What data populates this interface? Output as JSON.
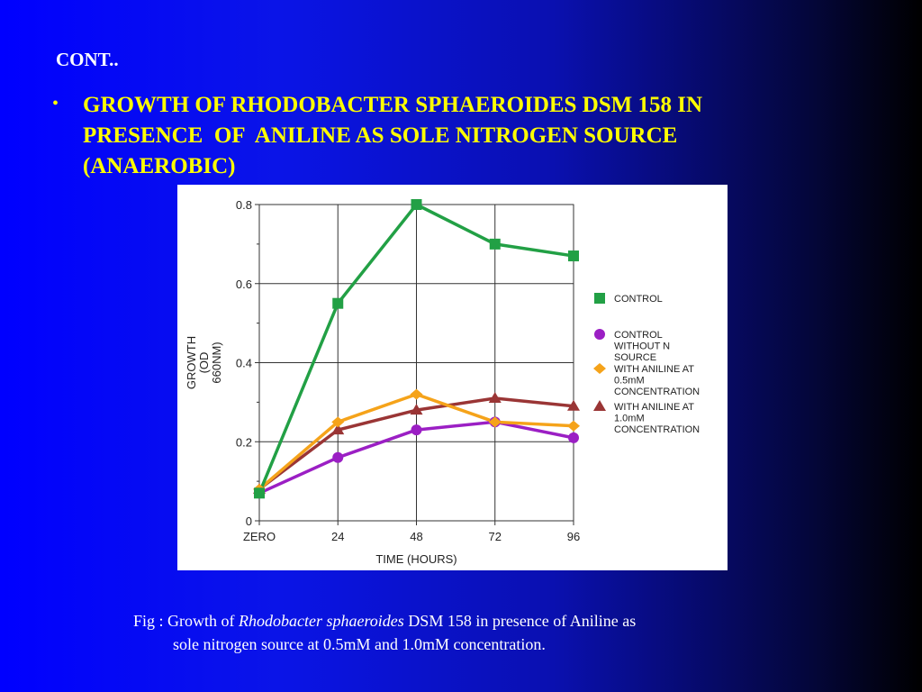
{
  "slide": {
    "cont_label": "CONT..",
    "bullet_symbol": "•",
    "bullet_lines": [
      "GROWTH OF RHODOBACTER SPHAEROIDES DSM 158 IN",
      "PRESENCE  OF  ANILINE AS SOLE NITROGEN SOURCE",
      "(ANAEROBIC)"
    ],
    "caption": {
      "prefix": "Fig : Growth of ",
      "italic": "Rhodobacter sphaeroides",
      "suffix": " DSM 158 in presence of Aniline as",
      "line2": "sole nitrogen source at 0.5mM and 1.0mM concentration."
    },
    "colors": {
      "title_text": "#ffff00",
      "body_text": "#ffffff",
      "background_left": "#0000ff",
      "background_right": "#000000"
    }
  },
  "chart_data": {
    "type": "line",
    "categories": [
      "ZERO",
      "24",
      "48",
      "72",
      "96"
    ],
    "xlabel": "TIME (HOURS)",
    "ylabel_lines": [
      "GROWTH",
      "(OD",
      "660NM)"
    ],
    "ylim": [
      0,
      0.8
    ],
    "yticks": [
      "0",
      "0.2",
      "0.4",
      "0.6",
      "0.8"
    ],
    "grid": true,
    "legend_position": "right",
    "series": [
      {
        "name_lines": [
          "CONTROL"
        ],
        "color": "#22a045",
        "marker": "square",
        "values": [
          0.07,
          0.55,
          0.8,
          0.7,
          0.67
        ]
      },
      {
        "name_lines": [
          "CONTROL",
          "WITHOUT N",
          "SOURCE"
        ],
        "color": "#9b1fc4",
        "marker": "circle",
        "values": [
          0.07,
          0.16,
          0.23,
          0.25,
          0.21
        ]
      },
      {
        "name_lines": [
          "WITH ANILINE AT",
          "0.5mM",
          "CONCENTRATION"
        ],
        "color": "#f5a31a",
        "marker": "diamond",
        "values": [
          0.08,
          0.25,
          0.32,
          0.25,
          0.24
        ]
      },
      {
        "name_lines": [
          "WITH ANILINE AT",
          "1.0mM",
          "CONCENTRATION"
        ],
        "color": "#9a3535",
        "marker": "triangle",
        "values": [
          0.08,
          0.23,
          0.28,
          0.31,
          0.29
        ]
      }
    ]
  }
}
